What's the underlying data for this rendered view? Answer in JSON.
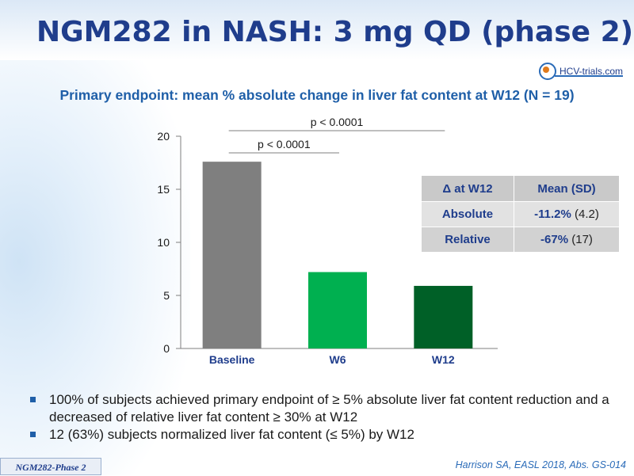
{
  "slide": {
    "title": "NGM282 in NASH: 3 mg QD (phase 2)",
    "subtitle": "Primary endpoint: mean % absolute change in liver fat content at W12 (N = 19)",
    "logo_text": "HCV-trials.com",
    "footer_tag": "NGM282-Phase 2",
    "citation": "Harrison SA, EASL 2018, Abs. GS-014"
  },
  "chart_data": {
    "type": "bar",
    "categories": [
      "Baseline",
      "W6",
      "W12"
    ],
    "values": [
      17.6,
      7.2,
      5.9
    ],
    "colors": [
      "#7f7f7f",
      "#00b050",
      "#006027"
    ],
    "ylim": [
      0,
      20
    ],
    "yticks": [
      0,
      5,
      10,
      15,
      20
    ],
    "annotations": [
      {
        "from": "Baseline",
        "to": "W6",
        "text": "p < 0.0001"
      },
      {
        "from": "Baseline",
        "to": "W12",
        "text": "p < 0.0001"
      }
    ]
  },
  "table": {
    "headers": [
      "Δ at W12",
      "Mean (SD)"
    ],
    "rows": [
      {
        "label": "Absolute",
        "mean": "-11.2%",
        "sd": "(4.2)"
      },
      {
        "label": "Relative",
        "mean": "-67%",
        "sd": "(17)"
      }
    ]
  },
  "bullets": [
    "100% of subjects achieved primary endpoint of ≥ 5% absolute liver fat content reduction and a decreased of relative liver fat content ≥ 30% at W12",
    "12 (63%) subjects normalized liver fat content  (≤ 5%) by W12"
  ],
  "colors": {
    "title": "#1f3d8c",
    "subtitle": "#1f5fa8",
    "accent": "#2a6bb8"
  }
}
